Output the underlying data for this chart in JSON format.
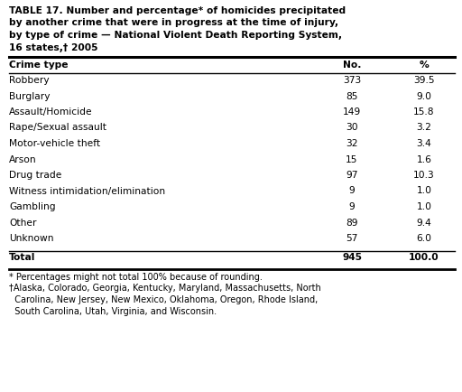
{
  "title_lines": [
    "TABLE 17. Number and percentage* of homicides precipitated",
    "by another crime that were in progress at the time of injury,",
    "by type of crime — National Violent Death Reporting System,",
    "16 states,† 2005"
  ],
  "col_headers": [
    "Crime type",
    "No.",
    "%"
  ],
  "rows": [
    [
      "Robbery",
      "373",
      "39.5"
    ],
    [
      "Burglary",
      "85",
      "9.0"
    ],
    [
      "Assault/Homicide",
      "149",
      "15.8"
    ],
    [
      "Rape/Sexual assault",
      "30",
      "3.2"
    ],
    [
      "Motor-vehicle theft",
      "32",
      "3.4"
    ],
    [
      "Arson",
      "15",
      "1.6"
    ],
    [
      "Drug trade",
      "97",
      "10.3"
    ],
    [
      "Witness intimidation/elimination",
      "9",
      "1.0"
    ],
    [
      "Gambling",
      "9",
      "1.0"
    ],
    [
      "Other",
      "89",
      "9.4"
    ],
    [
      "Unknown",
      "57",
      "6.0"
    ]
  ],
  "total_row": [
    "Total",
    "945",
    "100.0"
  ],
  "footnotes": [
    "* Percentages might not total 100% because of rounding.",
    "†Alaska, Colorado, Georgia, Kentucky, Maryland, Massachusetts, North",
    "  Carolina, New Jersey, New Mexico, Oklahoma, Oregon, Rhode Island,",
    "  South Carolina, Utah, Virginia, and Wisconsin."
  ],
  "bg_color": "#ffffff",
  "text_color": "#000000",
  "title_fontsize": 7.7,
  "body_fontsize": 7.7,
  "footnote_fontsize": 7.0
}
